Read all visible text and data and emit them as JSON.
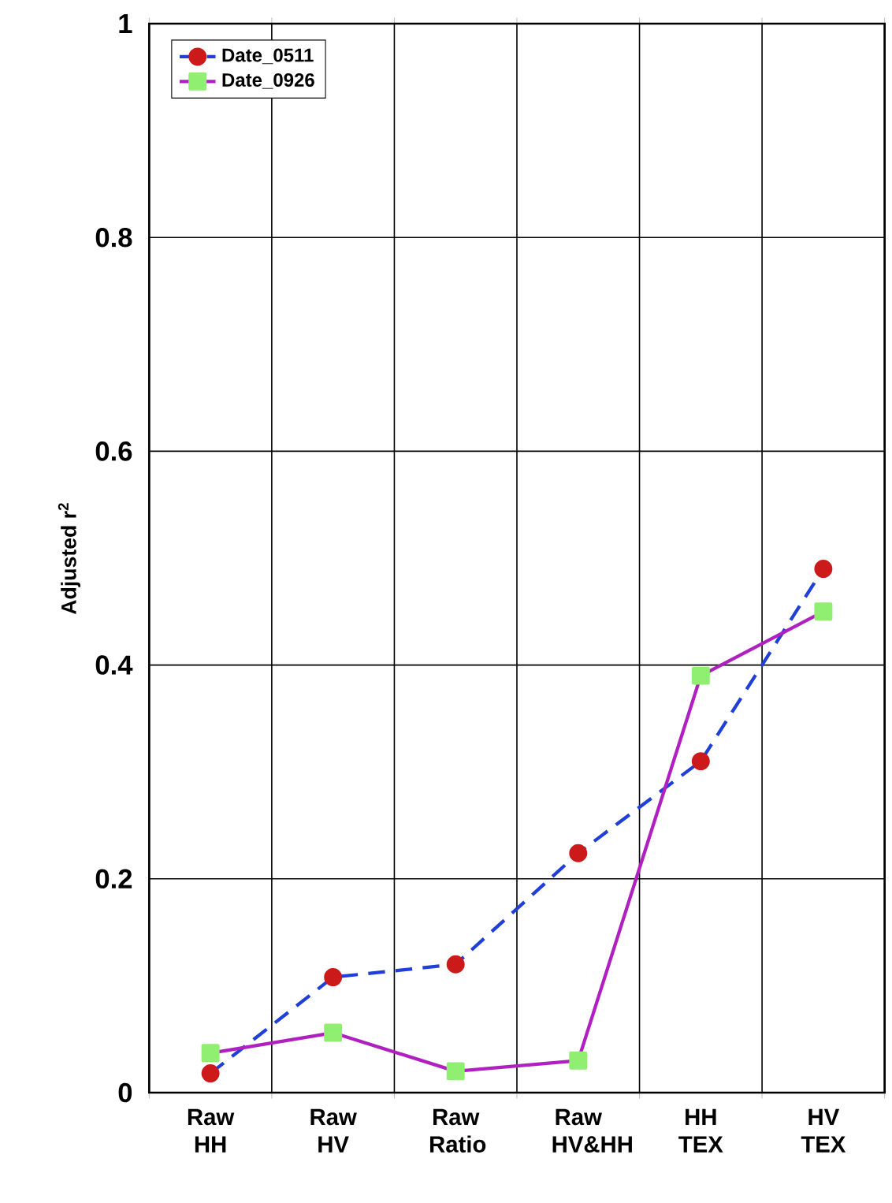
{
  "chart_data": {
    "type": "line",
    "ylabel": "Adjusted r$^{2}$",
    "categories": [
      "Raw HH",
      "Raw HV",
      "Raw Ratio",
      "Raw HV&HH",
      "HH TEX",
      "HV TEX"
    ],
    "series": [
      {
        "name": "Date_0511",
        "color": "#1f3fd8",
        "colors": [
          "#cc1a1a",
          "#cc1a1a",
          "#cc1a1a",
          "#cc1a1a",
          "#cc1a1a",
          "#cc1a1a"
        ],
        "marker": "circle",
        "line_style": "dashed",
        "values": [
          0.018,
          0.108,
          0.12,
          0.224,
          0.31,
          0.49
        ]
      },
      {
        "name": "Date_0926",
        "color": "#b020c0",
        "colors": [
          "#90ee70",
          "#90ee70",
          "#90ee70",
          "#90ee70",
          "#90ee70",
          "#90ee70"
        ],
        "marker": "square",
        "line_style": "solid",
        "values": [
          0.037,
          0.056,
          0.02,
          0.03,
          0.39,
          0.45
        ]
      }
    ],
    "ylim": [
      0,
      1
    ],
    "yticks": [
      0,
      0.2,
      0.4,
      0.6,
      0.8,
      1
    ],
    "grid": true,
    "legend": "top left"
  }
}
